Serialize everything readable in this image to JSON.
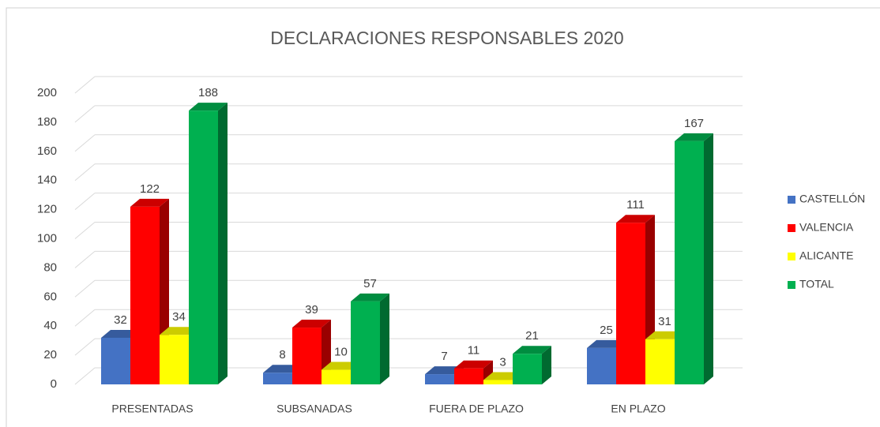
{
  "chart_data": {
    "type": "bar3d",
    "title": "DECLARACIONES RESPONSABLES 2020",
    "categories": [
      "PRESENTADAS",
      "SUBSANADAS",
      "FUERA DE PLAZO",
      "EN PLAZO"
    ],
    "series": [
      {
        "name": "CASTELLÓN",
        "color": "#4472c4",
        "values": [
          32,
          8,
          7,
          25
        ]
      },
      {
        "name": "VALENCIA",
        "color": "#ff0000",
        "values": [
          122,
          39,
          11,
          111
        ]
      },
      {
        "name": "ALICANTE",
        "color": "#ffff00",
        "values": [
          34,
          10,
          3,
          31
        ]
      },
      {
        "name": "TOTAL",
        "color": "#00b050",
        "values": [
          188,
          57,
          21,
          167
        ]
      }
    ],
    "ylim": [
      0,
      200
    ],
    "yticks": [
      0,
      20,
      40,
      60,
      80,
      100,
      120,
      140,
      160,
      180,
      200
    ],
    "grid": true,
    "legend": "right"
  }
}
